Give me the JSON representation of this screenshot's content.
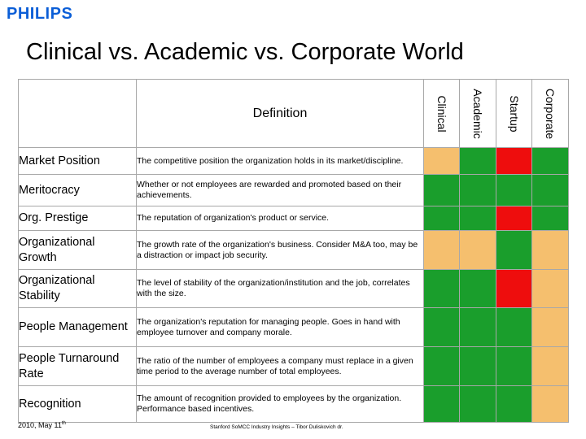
{
  "header": {
    "logo_text": "PHILIPS",
    "title": "Clinical vs. Academic vs. Corporate World"
  },
  "table": {
    "definition_header": "Definition",
    "columns": [
      "Clinical",
      "Academic",
      "Startup",
      "Corporate"
    ],
    "colors": {
      "green": "#1a9e2c",
      "orange": "#f5bf6e",
      "red": "#ee0d0d"
    },
    "rows": [
      {
        "label": "Market Position",
        "definition": "The competitive position the organization holds in its market/discipline.",
        "ratings": [
          "orange",
          "green",
          "red",
          "green"
        ]
      },
      {
        "label": "Meritocracy",
        "definition": "Whether or not employees are rewarded and promoted based on their achievements.",
        "ratings": [
          "green",
          "green",
          "green",
          "green"
        ]
      },
      {
        "label": "Org. Prestige",
        "definition": "The reputation of organization's product or service.",
        "ratings": [
          "green",
          "green",
          "red",
          "green"
        ]
      },
      {
        "label": "Organizational Growth",
        "definition": "The growth rate of the organization's business. Consider M&A too, may be a distraction or impact job security.",
        "ratings": [
          "orange",
          "orange",
          "green",
          "orange"
        ]
      },
      {
        "label": "Organizational Stability",
        "definition": "The level of stability of the organization/institution and the job, correlates with the size.",
        "ratings": [
          "green",
          "green",
          "red",
          "orange"
        ]
      },
      {
        "label": "People Management",
        "definition": "The organization's reputation for managing people. Goes in hand with employee turnover and company morale.",
        "ratings": [
          "green",
          "green",
          "green",
          "orange"
        ]
      },
      {
        "label": "People Turnaround Rate",
        "definition": "The ratio of the number of employees a company must replace in a given time period to the average number of total employees.",
        "ratings": [
          "green",
          "green",
          "green",
          "orange"
        ]
      },
      {
        "label": "Recognition",
        "definition": "The amount of recognition provided to employees by the organization. Performance based incentives.",
        "ratings": [
          "green",
          "green",
          "green",
          "orange"
        ]
      }
    ]
  },
  "footer": {
    "date": "2010, May 11",
    "date_suffix": "th",
    "source": "Stanford SoMCC Industry Insights – Tibor Duliskovich dr."
  }
}
